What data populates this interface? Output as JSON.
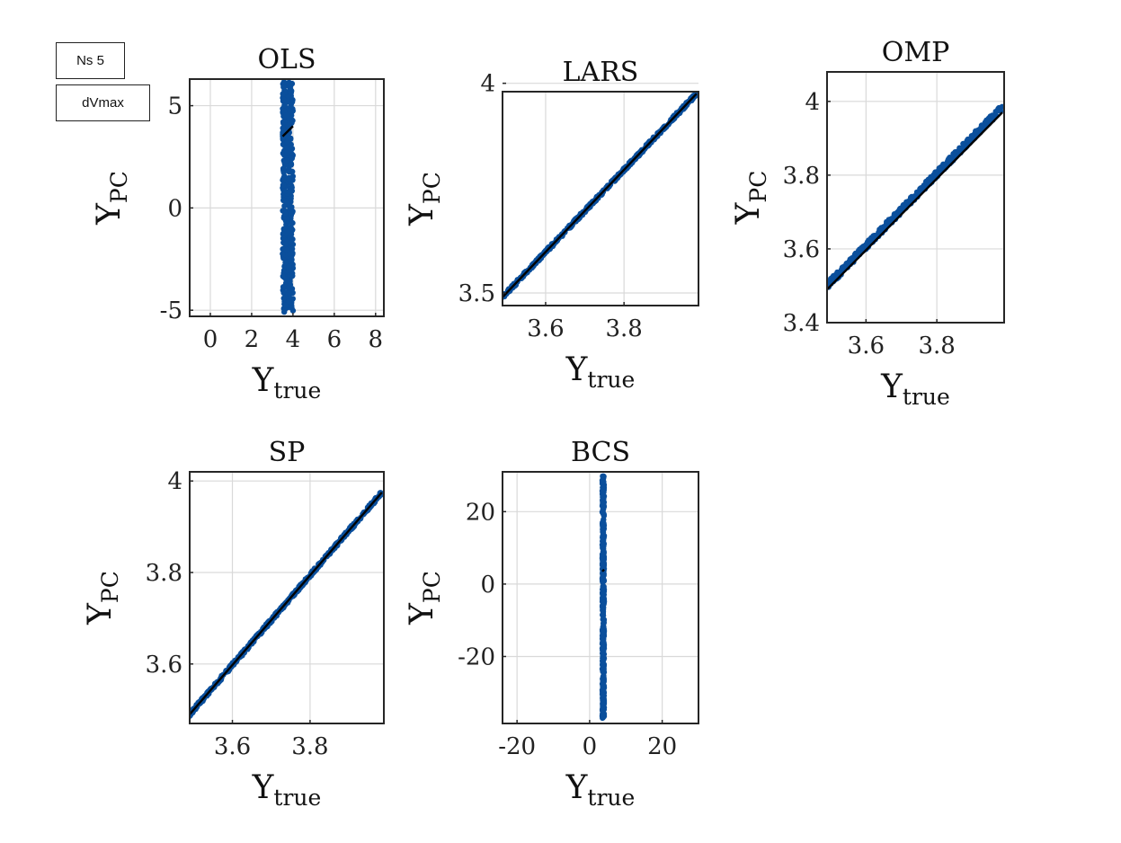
{
  "annotations": {
    "box1": "Ns 5",
    "box2": "dVmax"
  },
  "colors": {
    "scatter": "#0a4f9c",
    "fit_line": "#000000",
    "grid": "#d9d9d9",
    "axes": "#262626"
  },
  "chart_data": [
    {
      "type": "scatter",
      "title": "OLS",
      "xlabel": "Y",
      "xlabel_sub": "true",
      "ylabel": "Y",
      "ylabel_sub": "PC",
      "xlim": [
        -1,
        8.4
      ],
      "ylim": [
        -5.3,
        6.3
      ],
      "xticks": [
        0,
        2,
        4,
        6,
        8
      ],
      "xtick_labels": [
        "0",
        "2",
        "4",
        "6",
        "8"
      ],
      "yticks": [
        -5,
        0,
        5
      ],
      "ytick_labels": [
        "-5",
        "0",
        "5"
      ],
      "grid": true,
      "scatter": {
        "x_range": [
          3.5,
          4.0
        ],
        "y_range": [
          -5.1,
          6.2
        ]
      },
      "fit_line": {
        "x": [
          3.5,
          4.0
        ],
        "y": [
          3.5,
          4.0
        ]
      }
    },
    {
      "type": "scatter",
      "title": "LARS",
      "xlabel": "Y",
      "xlabel_sub": "true",
      "ylabel": "Y",
      "ylabel_sub": "PC",
      "xlim": [
        3.49,
        3.99
      ],
      "ylim": [
        3.47,
        3.98
      ],
      "xticks": [
        3.6,
        3.8
      ],
      "xtick_labels": [
        "3.6",
        "3.8"
      ],
      "yticks": [
        3.5,
        4.0
      ],
      "ytick_labels": [
        "3.5",
        "4"
      ],
      "grid": true,
      "scatter": {
        "x_range": [
          3.49,
          3.985
        ],
        "y_range": [
          3.49,
          3.975
        ]
      },
      "fit_line": {
        "x": [
          3.49,
          3.985
        ],
        "y": [
          3.49,
          3.975
        ]
      }
    },
    {
      "type": "scatter",
      "title": "OMP",
      "xlabel": "Y",
      "xlabel_sub": "true",
      "ylabel": "Y",
      "ylabel_sub": "PC",
      "xlim": [
        3.49,
        3.99
      ],
      "ylim": [
        3.4,
        4.08
      ],
      "xticks": [
        3.6,
        3.8
      ],
      "xtick_labels": [
        "3.6",
        "3.8"
      ],
      "yticks": [
        3.4,
        3.6,
        3.8,
        4.0
      ],
      "ytick_labels": [
        "3.4",
        "3.6",
        "3.8",
        "4"
      ],
      "grid": true,
      "scatter": {
        "x_range": [
          3.49,
          3.985
        ],
        "y_range": [
          3.5,
          3.985
        ]
      },
      "fit_line": {
        "x": [
          3.49,
          3.985
        ],
        "y": [
          3.49,
          3.97
        ]
      }
    },
    {
      "type": "scatter",
      "title": "SP",
      "xlabel": "Y",
      "xlabel_sub": "true",
      "ylabel": "Y",
      "ylabel_sub": "PC",
      "xlim": [
        3.49,
        3.99
      ],
      "ylim": [
        3.47,
        4.02
      ],
      "xticks": [
        3.6,
        3.8
      ],
      "xtick_labels": [
        "3.6",
        "3.8"
      ],
      "yticks": [
        3.6,
        3.8,
        4.0
      ],
      "ytick_labels": [
        "3.6",
        "3.8",
        "4"
      ],
      "grid": true,
      "scatter": {
        "x_range": [
          3.49,
          3.985
        ],
        "y_range": [
          3.49,
          3.975
        ]
      },
      "fit_line": {
        "x": [
          3.49,
          3.985
        ],
        "y": [
          3.49,
          3.975
        ]
      }
    },
    {
      "type": "scatter",
      "title": "BCS",
      "xlabel": "Y",
      "xlabel_sub": "true",
      "ylabel": "Y",
      "ylabel_sub": "PC",
      "xlim": [
        -24,
        30
      ],
      "ylim": [
        -38.5,
        31
      ],
      "xticks": [
        -20,
        0,
        20
      ],
      "xtick_labels": [
        "-20",
        "0",
        "20"
      ],
      "yticks": [
        -20,
        0,
        20
      ],
      "ytick_labels": [
        "-20",
        "0",
        "20"
      ],
      "grid": true,
      "scatter": {
        "x_range": [
          3.5,
          4.0
        ],
        "y_range": [
          -37,
          30
        ]
      },
      "fit_line": {
        "x": [
          3.5,
          4.0
        ],
        "y": [
          3.5,
          4.0
        ]
      }
    }
  ]
}
